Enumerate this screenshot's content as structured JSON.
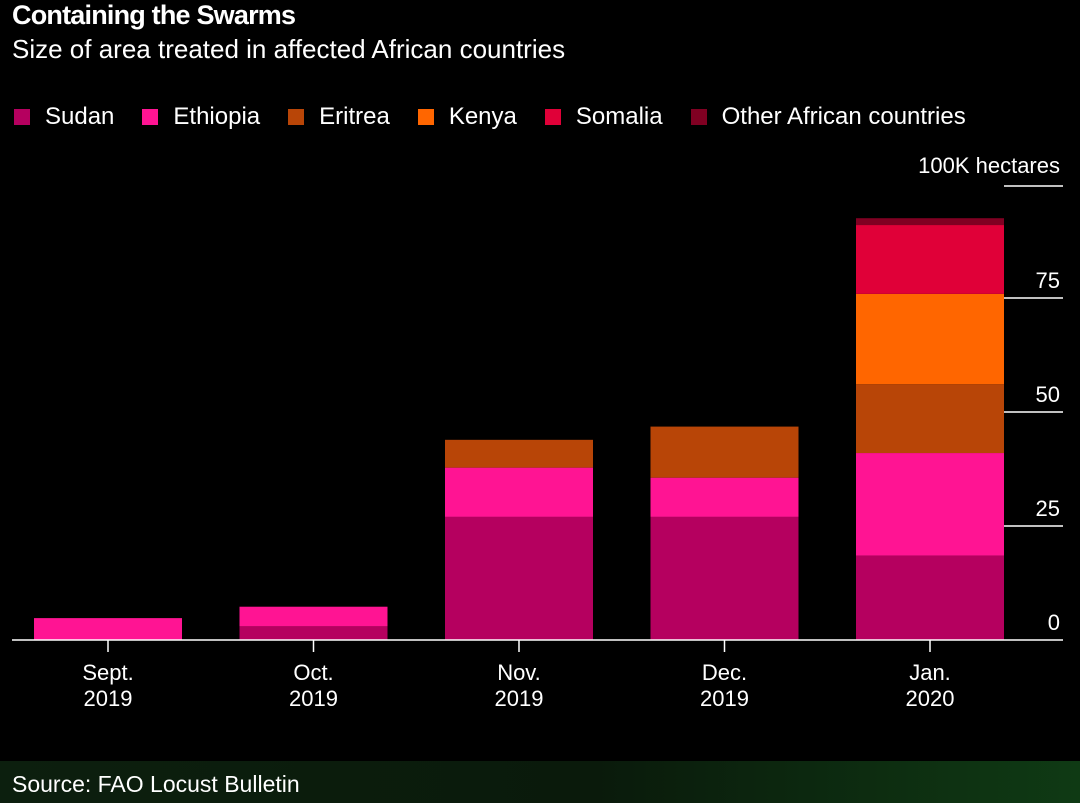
{
  "title": "Containing the Swarms",
  "subtitle": "Size of area treated in affected African countries",
  "source": "Source: FAO Locust Bulletin",
  "chart_data": {
    "type": "bar",
    "stacked": true,
    "unit_label": "100K hectares",
    "categories": [
      {
        "line1": "Sept.",
        "line2": "2019"
      },
      {
        "line1": "Oct.",
        "line2": "2019"
      },
      {
        "line1": "Nov.",
        "line2": "2019"
      },
      {
        "line1": "Dec.",
        "line2": "2019"
      },
      {
        "line1": "Jan.",
        "line2": "2020"
      }
    ],
    "yticks": [
      "0",
      "25",
      "50",
      "75"
    ],
    "ylim": [
      0,
      100
    ],
    "series": [
      {
        "name": "Sudan",
        "color": "#b5005f",
        "values": [
          0,
          3,
          27,
          27,
          18.5
        ]
      },
      {
        "name": "Ethiopia",
        "color": "#ff1493",
        "values": [
          4.8,
          4.3,
          10.8,
          8.6,
          22.5
        ]
      },
      {
        "name": "Eritrea",
        "color": "#b84507",
        "values": [
          0,
          0,
          6.1,
          11.2,
          15.1
        ]
      },
      {
        "name": "Kenya",
        "color": "#ff6600",
        "values": [
          0,
          0,
          0,
          0,
          19.8
        ]
      },
      {
        "name": "Somalia",
        "color": "#e00038",
        "values": [
          0,
          0,
          0,
          0,
          15.1
        ]
      },
      {
        "name": "Other African countries",
        "color": "#800022",
        "values": [
          0,
          0,
          0,
          0,
          1.5
        ]
      }
    ]
  }
}
